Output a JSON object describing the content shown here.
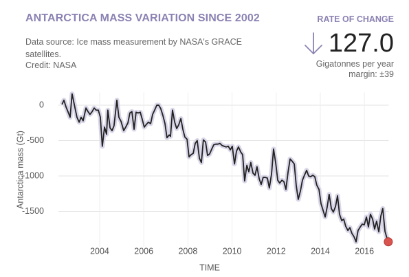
{
  "chart_data": {
    "type": "line",
    "title": "ANTARCTICA MASS VARIATION SINCE 2002",
    "subtitle": "Data source: Ice mass measurement by NASA's GRACE satellites.",
    "credit": "Credit: NASA",
    "rate_label": "RATE OF CHANGE",
    "rate_value": "127.0",
    "rate_unit": "Gigatonnes per year",
    "rate_margin": "margin: ±39",
    "x_label": "TIME",
    "y_label": "Antarctica mass (Gt)",
    "color": "#222222",
    "band_color": "#d9d6e8",
    "marker_color": "#d9534f",
    "grid": true,
    "xlim": [
      2002,
      2017.1
    ],
    "xticks": [
      2004,
      2006,
      2008,
      2010,
      2012,
      2014,
      2016
    ],
    "ylim": [
      -2000,
      180
    ],
    "yticks": [
      0,
      -500,
      -1000,
      -1500
    ],
    "x": [
      2002.29,
      2002.38,
      2002.47,
      2002.6,
      2002.66,
      2002.75,
      2002.85,
      2002.97,
      2003.07,
      2003.16,
      2003.25,
      2003.38,
      2003.47,
      2003.56,
      2003.66,
      2003.75,
      2003.84,
      2003.94,
      2004.03,
      2004.12,
      2004.22,
      2004.31,
      2004.37,
      2004.47,
      2004.56,
      2004.65,
      2004.78,
      2004.87,
      2004.97,
      2005.09,
      2005.18,
      2005.28,
      2005.37,
      2005.46,
      2005.56,
      2005.65,
      2005.74,
      2005.84,
      2005.93,
      2006.02,
      2006.12,
      2006.21,
      2006.31,
      2006.4,
      2006.49,
      2006.59,
      2006.68,
      2006.77,
      2006.87,
      2006.96,
      2007.05,
      2007.15,
      2007.21,
      2007.3,
      2007.4,
      2007.49,
      2007.58,
      2007.68,
      2007.77,
      2007.86,
      2007.96,
      2008.05,
      2008.14,
      2008.24,
      2008.33,
      2008.42,
      2008.52,
      2008.61,
      2008.7,
      2008.8,
      2008.89,
      2008.98,
      2009.08,
      2009.17,
      2009.26,
      2009.36,
      2009.45,
      2009.55,
      2009.64,
      2009.73,
      2009.83,
      2009.92,
      2010.01,
      2010.11,
      2010.2,
      2010.29,
      2010.39,
      2010.48,
      2010.57,
      2010.67,
      2010.76,
      2010.85,
      2010.95,
      2011.04,
      2011.13,
      2011.23,
      2011.32,
      2011.41,
      2011.51,
      2011.6,
      2011.69,
      2011.79,
      2011.88,
      2011.98,
      2012.07,
      2012.16,
      2012.26,
      2012.35,
      2012.44,
      2012.54,
      2012.63,
      2012.72,
      2012.82,
      2012.91,
      2013.0,
      2013.1,
      2013.19,
      2013.28,
      2013.38,
      2013.47,
      2013.56,
      2013.66,
      2013.75,
      2013.84,
      2013.94,
      2014.03,
      2014.12,
      2014.22,
      2014.31,
      2014.4,
      2014.5,
      2014.59,
      2014.69,
      2014.78,
      2014.87,
      2014.97,
      2015.06,
      2015.15,
      2015.25,
      2015.34,
      2015.43,
      2015.53,
      2015.62,
      2015.71,
      2015.81,
      2015.9,
      2015.99,
      2016.09,
      2016.18,
      2016.27,
      2016.37,
      2016.46,
      2016.55,
      2016.65,
      2016.74,
      2016.83,
      2016.93,
      2017.02,
      2017.08
    ],
    "values": [
      10,
      70,
      -20,
      -120,
      -170,
      160,
      10,
      -170,
      -240,
      -170,
      -220,
      -40,
      -90,
      -130,
      -90,
      -40,
      -70,
      -70,
      -170,
      -580,
      -310,
      -410,
      -70,
      -320,
      -360,
      -290,
      70,
      -170,
      -230,
      -360,
      -310,
      -250,
      -110,
      -90,
      -340,
      -100,
      -110,
      -100,
      -200,
      -310,
      -270,
      -240,
      -260,
      -130,
      -70,
      0,
      0,
      -50,
      -150,
      -260,
      -460,
      -420,
      -440,
      -70,
      -240,
      -330,
      -280,
      -190,
      -340,
      -450,
      -480,
      -730,
      -700,
      -680,
      -540,
      -500,
      -750,
      -810,
      -490,
      -520,
      -710,
      -690,
      -620,
      -560,
      -550,
      -550,
      -540,
      -570,
      -580,
      -590,
      -580,
      -630,
      -580,
      -830,
      -650,
      -590,
      -660,
      -700,
      -1070,
      -850,
      -940,
      -810,
      -960,
      -990,
      -870,
      -1040,
      -1120,
      -1020,
      -1020,
      -1030,
      -1170,
      -970,
      -620,
      -820,
      -1060,
      -1100,
      -1060,
      -1080,
      -1190,
      -940,
      -760,
      -790,
      -830,
      -1140,
      -1330,
      -1210,
      -1060,
      -990,
      -920,
      -1000,
      -1010,
      -990,
      -1010,
      -1130,
      -1190,
      -1390,
      -1480,
      -1580,
      -1440,
      -1260,
      -1460,
      -1510,
      -1430,
      -1280,
      -1540,
      -1630,
      -1610,
      -1710,
      -1770,
      -1730,
      -1810,
      -1860,
      -1930,
      -1770,
      -1720,
      -1680,
      -1690,
      -1580,
      -1720,
      -1540,
      -1610,
      -1750,
      -1640,
      -1790,
      -1570,
      -1460,
      -1780,
      -1880,
      -1930
    ]
  }
}
